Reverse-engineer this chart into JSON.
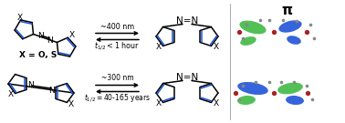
{
  "background_color": "#ffffff",
  "black": "#000000",
  "blue": "#1a4fd6",
  "green": "#3ab840",
  "pi_label": "π",
  "top_arrow_label": "~400 nm",
  "top_half_life": "t_{1/2} < 1 hour",
  "bot_arrow_label": "~300 nm",
  "bot_half_life": "t_{1/2} = 40-165 years",
  "x_label": "X = O, S",
  "lw": 1.1,
  "lw_dbl": 1.1
}
